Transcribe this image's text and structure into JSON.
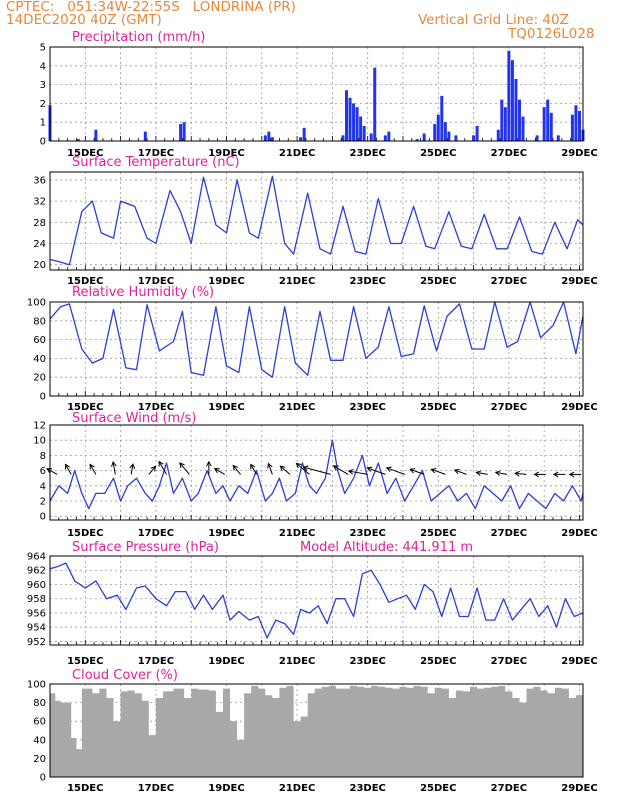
{
  "header": {
    "left_line1": "CPTEC:   051:34W-22:55S   LONDRINA (PR)",
    "left_line2": "14DEC2020 40Z (GMT)",
    "right_line1": "Vertical Grid Line: 40Z",
    "right_line2": "TQ0126L028"
  },
  "colors": {
    "line": "#2b3fd6",
    "bar": "#2233ee",
    "cloud": "#a8a8a8",
    "title": "#e0209c",
    "header": "#e8873a"
  },
  "x_ticks": [
    "15DEC",
    "17DEC",
    "19DEC",
    "21DEC",
    "23DEC",
    "25DEC",
    "27DEC",
    "29DEC"
  ],
  "model_altitude": "Model Altitude: 441.911 m",
  "chart_data": [
    {
      "type": "bar",
      "title": "Precipitation (mm/h)",
      "ylim": [
        0,
        5
      ],
      "yticks": [
        0,
        1,
        2,
        3,
        4,
        5
      ],
      "x": [
        14.0,
        14.8,
        15.3,
        16.7,
        17.7,
        17.8,
        20.1,
        20.2,
        20.3,
        21.1,
        21.2,
        22.3,
        22.4,
        22.5,
        22.6,
        22.7,
        22.8,
        22.9,
        23.1,
        23.2,
        23.5,
        23.6,
        24.4,
        24.6,
        24.9,
        25.0,
        25.1,
        25.2,
        25.3,
        25.5,
        26.0,
        26.1,
        26.7,
        26.8,
        26.9,
        27.0,
        27.1,
        27.2,
        27.3,
        27.4,
        27.8,
        28.0,
        28.1,
        28.2,
        28.4,
        28.8,
        28.9,
        29.0,
        29.1
      ],
      "values": [
        1.9,
        0.1,
        0.6,
        0.5,
        0.9,
        1.0,
        0.3,
        0.5,
        0.2,
        0.2,
        0.7,
        0.3,
        2.7,
        2.3,
        2.0,
        1.8,
        1.3,
        0.8,
        0.4,
        3.9,
        0.3,
        0.5,
        0.1,
        0.4,
        0.9,
        1.4,
        2.4,
        1.0,
        0.5,
        0.3,
        0.3,
        0.8,
        0.6,
        2.2,
        1.8,
        4.8,
        4.3,
        3.3,
        2.2,
        1.3,
        0.3,
        1.8,
        2.2,
        1.5,
        0.3,
        1.4,
        1.9,
        1.6,
        0.6
      ]
    },
    {
      "type": "line",
      "title": "Surface Temperature (nC)",
      "ylim": [
        19,
        37.5
      ],
      "yticks": [
        20,
        24,
        28,
        32,
        36
      ],
      "x": [
        14.0,
        14.3,
        14.55,
        14.9,
        15.2,
        15.45,
        15.8,
        16.0,
        16.4,
        16.75,
        17.0,
        17.4,
        17.7,
        18.0,
        18.35,
        18.7,
        19.0,
        19.3,
        19.65,
        19.9,
        20.3,
        20.65,
        20.9,
        21.3,
        21.65,
        21.95,
        22.3,
        22.65,
        22.95,
        23.3,
        23.65,
        23.95,
        24.3,
        24.65,
        24.9,
        25.3,
        25.65,
        25.95,
        26.3,
        26.65,
        26.95,
        27.3,
        27.65,
        27.95,
        28.3,
        28.65,
        28.95,
        29.1
      ],
      "values": [
        21,
        20.5,
        20,
        30,
        32,
        26,
        25,
        32,
        31,
        25,
        24,
        34,
        30,
        24,
        36.5,
        27.5,
        26,
        36,
        26,
        25,
        36.7,
        24,
        22,
        33.5,
        23,
        22,
        31,
        22.5,
        22,
        32.5,
        24,
        24,
        31,
        23.5,
        23,
        30,
        23.5,
        23,
        29.5,
        23,
        23,
        29,
        22.5,
        22,
        28,
        23,
        28.5,
        27.5
      ]
    },
    {
      "type": "line",
      "title": "Relative Humidity (%)",
      "ylim": [
        0,
        100
      ],
      "yticks": [
        0,
        20,
        40,
        60,
        80,
        100
      ],
      "x": [
        14.0,
        14.3,
        14.55,
        14.9,
        15.2,
        15.5,
        15.8,
        16.15,
        16.45,
        16.75,
        17.1,
        17.5,
        17.75,
        18.0,
        18.35,
        18.7,
        19.0,
        19.35,
        19.65,
        20.0,
        20.3,
        20.65,
        20.95,
        21.3,
        21.65,
        21.95,
        22.3,
        22.6,
        22.95,
        23.3,
        23.6,
        23.95,
        24.3,
        24.6,
        24.95,
        25.25,
        25.6,
        25.95,
        26.3,
        26.6,
        26.95,
        27.25,
        27.6,
        27.9,
        28.25,
        28.55,
        28.9,
        29.1
      ],
      "values": [
        82,
        95,
        98,
        50,
        35,
        40,
        92,
        30,
        28,
        97,
        48,
        58,
        90,
        25,
        22,
        95,
        32,
        25,
        95,
        28,
        20,
        95,
        35,
        22,
        90,
        38,
        38,
        95,
        40,
        52,
        95,
        42,
        45,
        96,
        48,
        85,
        98,
        50,
        50,
        100,
        52,
        58,
        100,
        62,
        75,
        100,
        45,
        85
      ]
    },
    {
      "type": "line",
      "title": "Surface Wind (m/s)",
      "ylim": [
        -0.5,
        12
      ],
      "yticks": [
        0,
        2,
        4,
        6,
        8,
        10,
        12
      ],
      "x": [
        14.0,
        14.25,
        14.5,
        14.7,
        14.9,
        15.1,
        15.3,
        15.55,
        15.8,
        16.0,
        16.2,
        16.45,
        16.7,
        16.9,
        17.1,
        17.3,
        17.5,
        17.75,
        18.0,
        18.2,
        18.45,
        18.7,
        18.9,
        19.1,
        19.35,
        19.6,
        19.85,
        20.1,
        20.3,
        20.5,
        20.7,
        20.95,
        21.15,
        21.35,
        21.55,
        21.8,
        22.0,
        22.15,
        22.35,
        22.6,
        22.85,
        23.05,
        23.3,
        23.55,
        23.8,
        24.05,
        24.3,
        24.55,
        24.8,
        25.05,
        25.3,
        25.55,
        25.8,
        26.05,
        26.3,
        26.55,
        26.8,
        27.05,
        27.3,
        27.55,
        27.8,
        28.05,
        28.3,
        28.55,
        28.8,
        29.05,
        29.1
      ],
      "values": [
        2,
        4,
        3,
        6,
        3,
        1,
        3,
        3,
        5,
        2,
        4,
        5,
        3,
        2,
        4,
        7,
        3,
        5,
        2,
        3,
        6,
        3,
        4,
        2,
        4,
        3,
        6,
        2,
        3,
        5,
        2,
        3,
        7,
        4,
        3,
        5,
        10,
        6,
        3,
        5,
        8,
        4,
        7,
        3,
        5,
        2,
        4,
        6,
        2,
        3,
        4,
        2,
        3,
        1,
        4,
        3,
        2,
        4,
        1,
        3,
        2,
        1,
        3,
        2,
        4,
        2,
        3
      ],
      "vectors": {
        "x": [
          14.2,
          14.6,
          15.3,
          15.85,
          16.3,
          16.8,
          17.3,
          17.95,
          18.5,
          18.95,
          19.4,
          19.85,
          20.3,
          20.8,
          21.35,
          21.95,
          22.45,
          23.0,
          23.5,
          24.05,
          24.6,
          25.2,
          25.8,
          26.4,
          26.95,
          27.5,
          28.05,
          28.6,
          29.05
        ],
        "angle_deg": [
          -150,
          -120,
          -120,
          -100,
          -80,
          -50,
          -120,
          -130,
          -90,
          -150,
          -130,
          -120,
          -110,
          -140,
          -140,
          -165,
          -150,
          -170,
          -160,
          -160,
          -160,
          -160,
          -160,
          -170,
          -170,
          -175,
          -180,
          -180,
          -180
        ],
        "speed": [
          2.5,
          2.5,
          2.5,
          3,
          2,
          2,
          4,
          4,
          3,
          2.5,
          2.5,
          2.5,
          2.5,
          3,
          5,
          10,
          5,
          6,
          6,
          6,
          4,
          4,
          3,
          2.5,
          2.5,
          2.5,
          2.5,
          2.5,
          2.5
        ]
      }
    },
    {
      "type": "line",
      "title": "Surface Pressure (hPa)",
      "ylim": [
        951.5,
        964
      ],
      "yticks": [
        952,
        954,
        956,
        958,
        960,
        962,
        964
      ],
      "x": [
        14.0,
        14.2,
        14.45,
        14.7,
        15.0,
        15.3,
        15.6,
        15.9,
        16.15,
        16.45,
        16.7,
        17.0,
        17.3,
        17.55,
        17.85,
        18.1,
        18.35,
        18.6,
        18.9,
        19.1,
        19.35,
        19.65,
        19.9,
        20.15,
        20.4,
        20.65,
        20.9,
        21.1,
        21.35,
        21.6,
        21.85,
        22.1,
        22.35,
        22.6,
        22.85,
        23.1,
        23.35,
        23.6,
        23.85,
        24.1,
        24.35,
        24.6,
        24.85,
        25.1,
        25.35,
        25.6,
        25.85,
        26.1,
        26.35,
        26.6,
        26.85,
        27.1,
        27.35,
        27.6,
        27.85,
        28.1,
        28.35,
        28.6,
        28.85,
        29.1
      ],
      "values": [
        962.2,
        962.5,
        963,
        960.5,
        959.5,
        960.5,
        958,
        958.5,
        956.5,
        959.5,
        959.8,
        958,
        957,
        959,
        959,
        956.5,
        958.5,
        956.5,
        958.5,
        955,
        956.2,
        955,
        955.5,
        952.5,
        955,
        954.5,
        953,
        956.5,
        956,
        957,
        954.5,
        958,
        958,
        955.5,
        961.5,
        962,
        960,
        957.5,
        958,
        958.5,
        956.5,
        960,
        959,
        955.5,
        959.5,
        955.5,
        955.5,
        959.5,
        955,
        955,
        958,
        955,
        956.5,
        958,
        955.5,
        957,
        954,
        958,
        955.5,
        956
      ]
    },
    {
      "type": "area",
      "title": "Cloud Cover (%)",
      "ylim": [
        0,
        100
      ],
      "yticks": [
        0,
        20,
        40,
        60,
        80,
        100
      ],
      "x": [
        14.0,
        14.15,
        14.3,
        14.6,
        14.75,
        14.9,
        15.2,
        15.4,
        15.6,
        15.8,
        16.0,
        16.2,
        16.4,
        16.6,
        16.8,
        17.0,
        17.2,
        17.5,
        17.8,
        18.0,
        18.2,
        18.5,
        18.7,
        18.9,
        19.1,
        19.3,
        19.5,
        19.7,
        19.9,
        20.1,
        20.3,
        20.5,
        20.7,
        20.9,
        21.1,
        21.3,
        21.5,
        21.7,
        21.9,
        22.1,
        22.3,
        22.5,
        22.7,
        22.9,
        23.1,
        23.3,
        23.5,
        23.7,
        23.9,
        24.1,
        24.3,
        24.5,
        24.7,
        24.9,
        25.1,
        25.3,
        25.5,
        25.7,
        25.9,
        26.1,
        26.3,
        26.5,
        26.7,
        26.9,
        27.1,
        27.3,
        27.5,
        27.7,
        27.9,
        28.1,
        28.3,
        28.5,
        28.7,
        28.9,
        29.1
      ],
      "values": [
        90,
        82,
        80,
        42,
        30,
        95,
        90,
        95,
        85,
        60,
        92,
        93,
        90,
        82,
        45,
        85,
        92,
        95,
        85,
        95,
        94,
        93,
        70,
        95,
        60,
        40,
        90,
        98,
        95,
        88,
        85,
        96,
        98,
        60,
        65,
        90,
        95,
        97,
        98,
        95,
        95,
        98,
        97,
        96,
        98,
        97,
        96,
        95,
        97,
        96,
        98,
        97,
        90,
        96,
        95,
        85,
        93,
        92,
        97,
        95,
        96,
        97,
        98,
        92,
        85,
        80,
        95,
        97,
        93,
        90,
        96,
        95,
        85,
        88,
        97
      ]
    }
  ]
}
